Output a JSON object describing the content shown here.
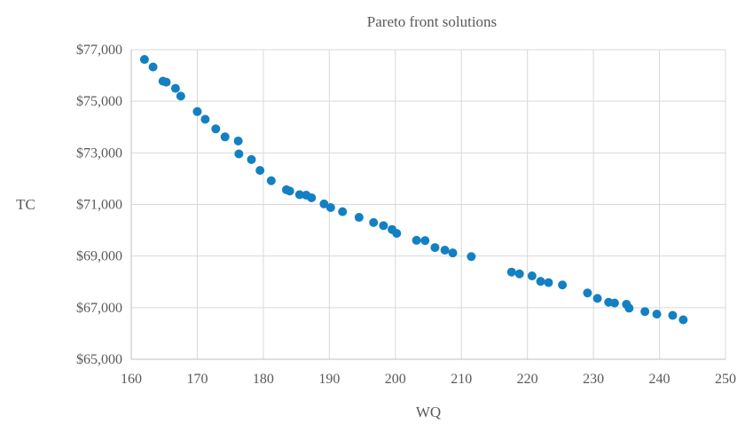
{
  "chart_data": {
    "type": "scatter",
    "title": "Pareto front solutions",
    "xlabel": "WQ",
    "ylabel": "TC",
    "xlim": [
      160,
      250
    ],
    "ylim": [
      65000,
      77000
    ],
    "x_ticks": [
      160,
      170,
      180,
      190,
      200,
      210,
      220,
      230,
      240,
      250
    ],
    "y_ticks": [
      65000,
      67000,
      69000,
      71000,
      73000,
      75000,
      77000
    ],
    "x_tick_labels": [
      "160",
      "170",
      "180",
      "190",
      "200",
      "210",
      "220",
      "230",
      "240",
      "250"
    ],
    "y_tick_labels": [
      "$65,000",
      "$67,000",
      "$69,000",
      "$71,000",
      "$73,000",
      "$75,000",
      "$77,000"
    ],
    "grid": true,
    "legend": "none",
    "marker_color": "#1380c3",
    "series": [
      {
        "points": [
          [
            162.0,
            76620
          ],
          [
            163.3,
            76330
          ],
          [
            164.8,
            75780
          ],
          [
            165.3,
            75740
          ],
          [
            166.7,
            75500
          ],
          [
            167.5,
            75200
          ],
          [
            170.0,
            74600
          ],
          [
            171.2,
            74300
          ],
          [
            172.8,
            73930
          ],
          [
            174.2,
            73620
          ],
          [
            176.2,
            73460
          ],
          [
            176.3,
            72960
          ],
          [
            178.2,
            72740
          ],
          [
            179.5,
            72320
          ],
          [
            181.2,
            71920
          ],
          [
            183.5,
            71570
          ],
          [
            184.0,
            71520
          ],
          [
            185.5,
            71380
          ],
          [
            186.5,
            71360
          ],
          [
            187.3,
            71260
          ],
          [
            189.2,
            71020
          ],
          [
            190.2,
            70880
          ],
          [
            192.0,
            70720
          ],
          [
            194.5,
            70500
          ],
          [
            196.7,
            70300
          ],
          [
            198.2,
            70180
          ],
          [
            199.5,
            70030
          ],
          [
            200.2,
            69880
          ],
          [
            203.2,
            69610
          ],
          [
            204.5,
            69600
          ],
          [
            206.0,
            69330
          ],
          [
            207.5,
            69230
          ],
          [
            208.7,
            69120
          ],
          [
            211.5,
            68980
          ],
          [
            217.6,
            68380
          ],
          [
            218.8,
            68310
          ],
          [
            220.7,
            68230
          ],
          [
            222.0,
            68020
          ],
          [
            223.2,
            67970
          ],
          [
            225.3,
            67880
          ],
          [
            229.1,
            67570
          ],
          [
            230.6,
            67360
          ],
          [
            232.3,
            67210
          ],
          [
            233.2,
            67180
          ],
          [
            235.0,
            67130
          ],
          [
            235.4,
            66980
          ],
          [
            237.8,
            66850
          ],
          [
            239.6,
            66750
          ],
          [
            242.0,
            66700
          ],
          [
            243.6,
            66530
          ]
        ]
      }
    ]
  }
}
